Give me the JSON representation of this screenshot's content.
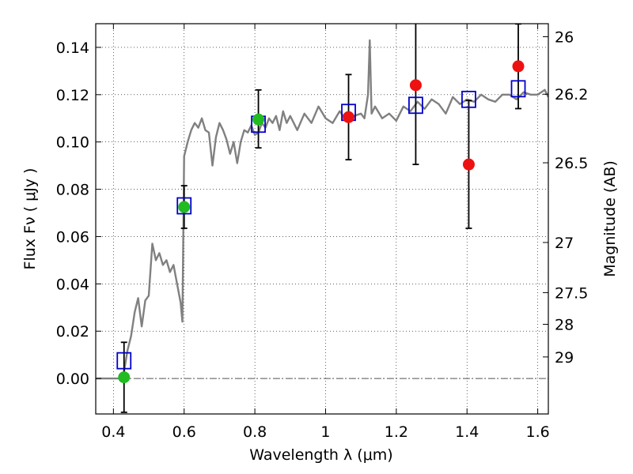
{
  "chart_data": {
    "type": "scatter",
    "xlabel": "Wavelength  λ (μm)",
    "ylabel": "Flux  Fν  ( μJy )",
    "ylabel_right": "Magnitude (AB)",
    "xlim": [
      0.35,
      1.63
    ],
    "ylim": [
      -0.015,
      0.15
    ],
    "grid": true,
    "x_ticks": [
      0.4,
      0.6,
      0.8,
      1.0,
      1.2,
      1.4,
      1.6
    ],
    "x_tick_labels": [
      "0.4",
      "0.6",
      "0.8",
      "1",
      "1.2",
      "1.4",
      "1.6"
    ],
    "y_ticks": [
      0.0,
      0.02,
      0.04,
      0.06,
      0.08,
      0.1,
      0.12,
      0.14
    ],
    "y_tick_labels": [
      "0.00",
      "0.02",
      "0.04",
      "0.06",
      "0.08",
      "0.10",
      "0.12",
      "0.14"
    ],
    "right_ticks": [
      {
        "label": "26",
        "flux": 0.1445
      },
      {
        "label": "26.2",
        "flux": 0.1202
      },
      {
        "label": "26.5",
        "flux": 0.0912
      },
      {
        "label": "27",
        "flux": 0.0575
      },
      {
        "label": "27.5",
        "flux": 0.0363
      },
      {
        "label": "28",
        "flux": 0.0229
      },
      {
        "label": "29",
        "flux": 0.0091
      }
    ],
    "colors": {
      "model": "#808080",
      "model_photometry": "#0000cc",
      "green_points": "#22bb22",
      "red_points": "#ee1111",
      "errorbar": "#000000"
    },
    "model_spectrum": {
      "x": [
        0.35,
        0.42,
        0.43,
        0.44,
        0.45,
        0.46,
        0.47,
        0.48,
        0.49,
        0.5,
        0.51,
        0.52,
        0.53,
        0.54,
        0.55,
        0.56,
        0.57,
        0.58,
        0.59,
        0.595,
        0.6,
        0.61,
        0.62,
        0.63,
        0.64,
        0.65,
        0.66,
        0.67,
        0.68,
        0.69,
        0.7,
        0.71,
        0.72,
        0.73,
        0.74,
        0.75,
        0.76,
        0.77,
        0.78,
        0.79,
        0.8,
        0.81,
        0.82,
        0.83,
        0.84,
        0.85,
        0.86,
        0.87,
        0.88,
        0.89,
        0.9,
        0.92,
        0.94,
        0.96,
        0.98,
        1.0,
        1.02,
        1.04,
        1.06,
        1.08,
        1.1,
        1.11,
        1.12,
        1.125,
        1.13,
        1.14,
        1.16,
        1.18,
        1.2,
        1.22,
        1.24,
        1.26,
        1.28,
        1.3,
        1.32,
        1.34,
        1.36,
        1.38,
        1.4,
        1.42,
        1.44,
        1.46,
        1.48,
        1.5,
        1.52,
        1.54,
        1.56,
        1.58,
        1.6,
        1.62,
        1.63
      ],
      "y": [
        0.0,
        0.0,
        0.003,
        0.012,
        0.018,
        0.028,
        0.034,
        0.022,
        0.033,
        0.035,
        0.057,
        0.05,
        0.053,
        0.048,
        0.05,
        0.045,
        0.048,
        0.04,
        0.032,
        0.024,
        0.094,
        0.1,
        0.105,
        0.108,
        0.106,
        0.11,
        0.105,
        0.104,
        0.09,
        0.102,
        0.108,
        0.105,
        0.101,
        0.095,
        0.1,
        0.091,
        0.1,
        0.105,
        0.104,
        0.107,
        0.103,
        0.104,
        0.108,
        0.106,
        0.11,
        0.108,
        0.111,
        0.105,
        0.113,
        0.108,
        0.111,
        0.105,
        0.112,
        0.108,
        0.115,
        0.11,
        0.108,
        0.113,
        0.109,
        0.111,
        0.112,
        0.11,
        0.12,
        0.143,
        0.112,
        0.115,
        0.11,
        0.112,
        0.109,
        0.115,
        0.113,
        0.117,
        0.114,
        0.118,
        0.116,
        0.112,
        0.119,
        0.116,
        0.118,
        0.117,
        0.12,
        0.118,
        0.117,
        0.12,
        0.12,
        0.118,
        0.121,
        0.12,
        0.12,
        0.122,
        0.119
      ]
    },
    "series": [
      {
        "marker": "open-square",
        "x": [
          0.43,
          0.6,
          0.81,
          1.065,
          1.255,
          1.405,
          1.545
        ],
        "y": [
          0.0075,
          0.073,
          0.1075,
          0.1125,
          0.1155,
          0.118,
          0.1225
        ]
      },
      {
        "marker": "filled-circle",
        "x": [
          0.43,
          0.6,
          0.81
        ],
        "y": [
          0.0005,
          0.0725,
          0.1095
        ],
        "yerr_low": [
          0.0148,
          0.009,
          0.012
        ],
        "yerr_high": [
          0.0148,
          0.009,
          0.0125
        ]
      },
      {
        "marker": "filled-circle",
        "x": [
          1.065,
          1.255,
          1.405,
          1.545
        ],
        "y": [
          0.1105,
          0.124,
          0.0905,
          0.132
        ],
        "yerr_low": [
          0.018,
          0.0335,
          0.027,
          0.0179
        ],
        "yerr_high": [
          0.018,
          0.0335,
          0.027,
          0.0179
        ]
      }
    ]
  }
}
